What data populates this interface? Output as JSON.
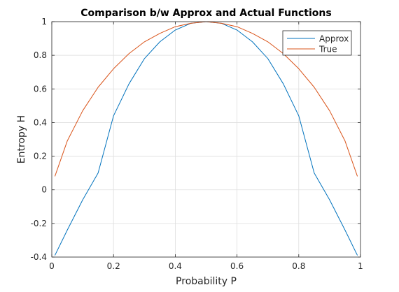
{
  "chart_data": {
    "type": "line",
    "title": "Comparison b/w Approx and Actual Functions",
    "xlabel": "Probability P",
    "ylabel": "Entropy H",
    "xlim": [
      0,
      1
    ],
    "ylim": [
      -0.4,
      1
    ],
    "xticks": [
      0,
      0.2,
      0.4,
      0.6,
      0.8,
      1
    ],
    "xtick_labels": [
      "0",
      "0.2",
      "0.4",
      "0.6",
      "0.8",
      "1"
    ],
    "yticks": [
      -0.4,
      -0.2,
      0,
      0.2,
      0.4,
      0.6,
      0.8,
      1
    ],
    "ytick_labels": [
      "-0.4",
      "-0.2",
      "0",
      "0.2",
      "0.4",
      "0.6",
      "0.8",
      "1"
    ],
    "grid": true,
    "legend_position": "top-right",
    "series": [
      {
        "name": "Approx",
        "color": "#0072BD",
        "x": [
          0.01,
          0.05,
          0.1,
          0.15,
          0.2,
          0.25,
          0.3,
          0.35,
          0.4,
          0.45,
          0.5,
          0.55,
          0.6,
          0.65,
          0.7,
          0.75,
          0.8,
          0.85,
          0.9,
          0.95,
          0.99
        ],
        "y": [
          -0.39,
          -0.24,
          -0.06,
          0.1,
          0.44,
          0.63,
          0.78,
          0.88,
          0.95,
          0.99,
          1.0,
          0.99,
          0.95,
          0.88,
          0.78,
          0.63,
          0.44,
          0.1,
          -0.06,
          -0.24,
          -0.39
        ]
      },
      {
        "name": "True",
        "color": "#D95319",
        "x": [
          0.01,
          0.05,
          0.1,
          0.15,
          0.2,
          0.25,
          0.3,
          0.35,
          0.4,
          0.45,
          0.5,
          0.55,
          0.6,
          0.65,
          0.7,
          0.75,
          0.8,
          0.85,
          0.9,
          0.95,
          0.99
        ],
        "y": [
          0.08,
          0.29,
          0.47,
          0.61,
          0.72,
          0.81,
          0.88,
          0.93,
          0.97,
          0.99,
          1.0,
          0.99,
          0.97,
          0.93,
          0.88,
          0.81,
          0.72,
          0.61,
          0.47,
          0.29,
          0.08
        ]
      }
    ]
  }
}
